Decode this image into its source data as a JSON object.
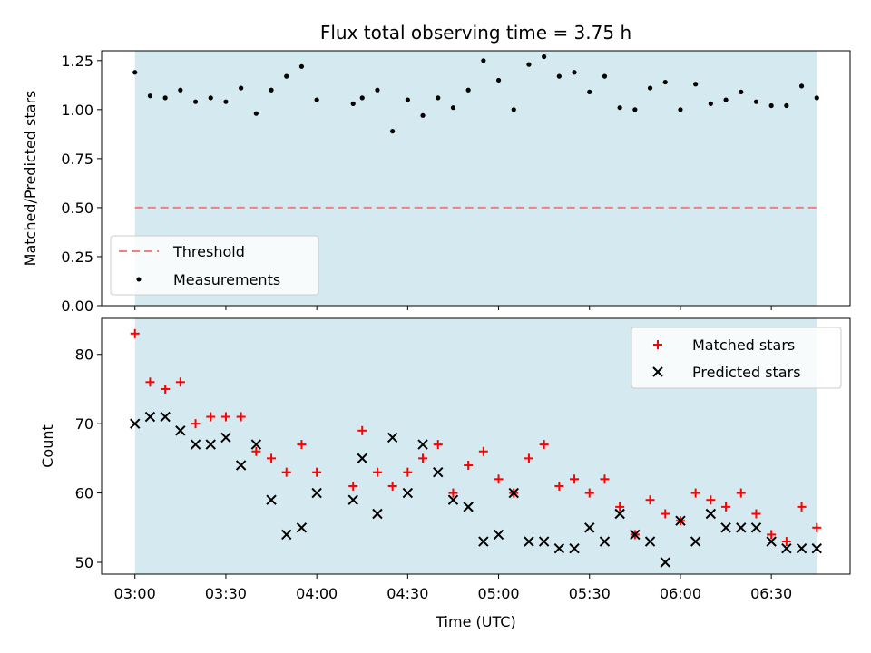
{
  "chart_data": [
    {
      "type": "scatter",
      "title": "Flux total observing time = 3.75 h",
      "xlabel": "",
      "ylabel": "Matched/Predicted stars",
      "ylim": [
        0.0,
        1.3
      ],
      "yticks": [
        "0.00",
        "0.25",
        "0.50",
        "0.75",
        "1.00",
        "1.25"
      ],
      "xlim_minutes": [
        -11,
        236
      ],
      "xticks": [
        "03:00",
        "03:30",
        "04:00",
        "04:30",
        "05:00",
        "05:30",
        "06:00",
        "06:30"
      ],
      "observing_window": [
        "03:00",
        "06:45"
      ],
      "shade_color": "#d4eaf0",
      "threshold": 0.5,
      "threshold_color": "#f08080",
      "legend_location": "lower left",
      "series": [
        {
          "name": "Measurements",
          "marker": "dot",
          "color": "#000000",
          "x": [
            "03:00",
            "03:05",
            "03:10",
            "03:15",
            "03:20",
            "03:25",
            "03:30",
            "03:35",
            "03:40",
            "03:45",
            "03:50",
            "03:55",
            "04:00",
            "04:12",
            "04:15",
            "04:20",
            "04:25",
            "04:30",
            "04:35",
            "04:40",
            "04:45",
            "04:50",
            "04:55",
            "05:00",
            "05:05",
            "05:10",
            "05:15",
            "05:20",
            "05:25",
            "05:30",
            "05:35",
            "05:40",
            "05:45",
            "05:50",
            "05:55",
            "06:00",
            "06:05",
            "06:10",
            "06:15",
            "06:20",
            "06:25",
            "06:30",
            "06:35",
            "06:40",
            "06:45"
          ],
          "y": [
            1.19,
            1.07,
            1.06,
            1.1,
            1.04,
            1.06,
            1.04,
            1.11,
            0.98,
            1.1,
            1.17,
            1.22,
            1.05,
            1.03,
            1.06,
            1.1,
            0.89,
            1.05,
            0.97,
            1.06,
            1.01,
            1.1,
            1.25,
            1.15,
            1.0,
            1.23,
            1.27,
            1.17,
            1.19,
            1.09,
            1.17,
            1.01,
            1.0,
            1.11,
            1.14,
            1.0,
            1.13,
            1.03,
            1.05,
            1.09,
            1.04,
            1.02,
            1.02,
            1.12,
            1.06
          ]
        }
      ],
      "legend": [
        "Threshold",
        "Measurements"
      ]
    },
    {
      "type": "scatter",
      "title": "",
      "xlabel": "Time (UTC)",
      "ylabel": "Count",
      "ylim": [
        48.3,
        85.2
      ],
      "yticks": [
        "50",
        "60",
        "70",
        "80"
      ],
      "xlim_minutes": [
        -11,
        236
      ],
      "xticks": [
        "03:00",
        "03:30",
        "04:00",
        "04:30",
        "05:00",
        "05:30",
        "06:00",
        "06:30"
      ],
      "observing_window": [
        "03:00",
        "06:45"
      ],
      "shade_color": "#d4eaf0",
      "legend_location": "upper right",
      "series": [
        {
          "name": "Matched stars",
          "marker": "plus",
          "color": "#ff0000",
          "x": [
            "03:00",
            "03:05",
            "03:10",
            "03:15",
            "03:20",
            "03:25",
            "03:30",
            "03:35",
            "03:40",
            "03:45",
            "03:50",
            "03:55",
            "04:00",
            "04:12",
            "04:15",
            "04:20",
            "04:25",
            "04:30",
            "04:35",
            "04:40",
            "04:45",
            "04:50",
            "04:55",
            "05:00",
            "05:05",
            "05:10",
            "05:15",
            "05:20",
            "05:25",
            "05:30",
            "05:35",
            "05:40",
            "05:45",
            "05:50",
            "05:55",
            "06:00",
            "06:05",
            "06:10",
            "06:15",
            "06:20",
            "06:25",
            "06:30",
            "06:35",
            "06:40",
            "06:45"
          ],
          "y": [
            83,
            76,
            75,
            76,
            70,
            71,
            71,
            71,
            66,
            65,
            63,
            67,
            63,
            61,
            69,
            63,
            61,
            63,
            65,
            67,
            60,
            64,
            66,
            62,
            60,
            65,
            67,
            61,
            62,
            60,
            62,
            58,
            54,
            59,
            57,
            56,
            60,
            59,
            58,
            60,
            57,
            54,
            53,
            58,
            55
          ]
        },
        {
          "name": "Predicted stars",
          "marker": "x",
          "color": "#000000",
          "x": [
            "03:00",
            "03:05",
            "03:10",
            "03:15",
            "03:20",
            "03:25",
            "03:30",
            "03:35",
            "03:40",
            "03:45",
            "03:50",
            "03:55",
            "04:00",
            "04:12",
            "04:15",
            "04:20",
            "04:25",
            "04:30",
            "04:35",
            "04:40",
            "04:45",
            "04:50",
            "04:55",
            "05:00",
            "05:05",
            "05:10",
            "05:15",
            "05:20",
            "05:25",
            "05:30",
            "05:35",
            "05:40",
            "05:45",
            "05:50",
            "05:55",
            "06:00",
            "06:05",
            "06:10",
            "06:15",
            "06:20",
            "06:25",
            "06:30",
            "06:35",
            "06:40",
            "06:45"
          ],
          "y": [
            70,
            71,
            71,
            69,
            67,
            67,
            68,
            64,
            67,
            59,
            54,
            55,
            60,
            59,
            65,
            57,
            68,
            60,
            67,
            63,
            59,
            58,
            53,
            54,
            60,
            53,
            53,
            52,
            52,
            55,
            53,
            57,
            54,
            53,
            50,
            56,
            53,
            57,
            55,
            55,
            55,
            53,
            52,
            52,
            52
          ]
        }
      ],
      "legend": [
        "Matched stars",
        "Predicted stars"
      ]
    }
  ]
}
